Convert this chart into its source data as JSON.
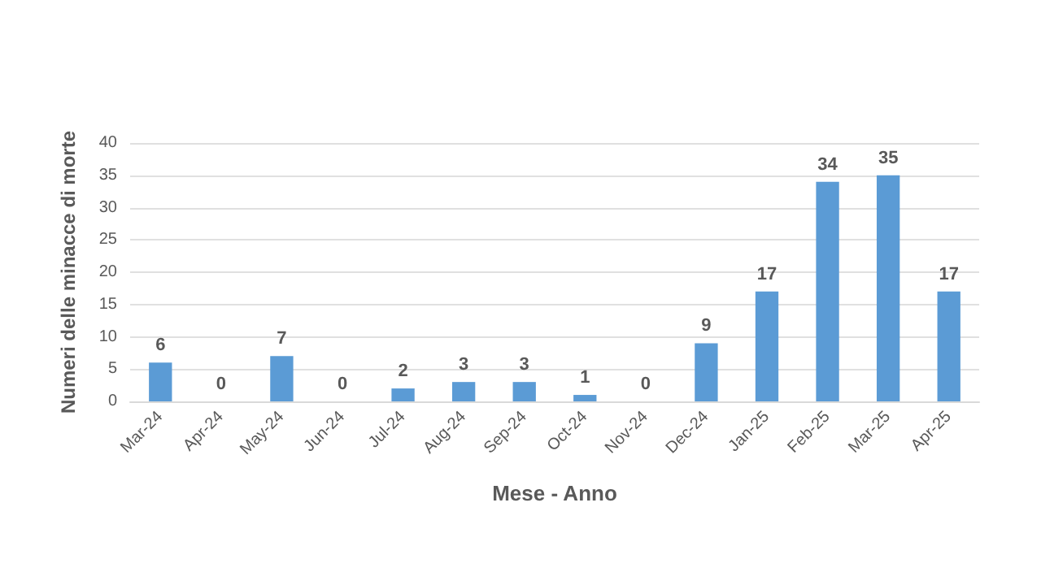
{
  "chart_data": {
    "type": "bar",
    "xlabel": "Mese - Anno",
    "ylabel": "Numeri delle minacce di morte",
    "categories": [
      "Mar-24",
      "Apr-24",
      "May-24",
      "Jun-24",
      "Jul-24",
      "Aug-24",
      "Sep-24",
      "Oct-24",
      "Nov-24",
      "Dec-24",
      "Jan-25",
      "Feb-25",
      "Mar-25",
      "Apr-25"
    ],
    "values": [
      6,
      0,
      7,
      0,
      2,
      3,
      3,
      1,
      0,
      9,
      17,
      34,
      35,
      17
    ],
    "color": "#5b9bd5",
    "ylim": [
      0,
      40
    ],
    "yticks": [
      0,
      5,
      10,
      15,
      20,
      25,
      30,
      35,
      40
    ],
    "grid": "y",
    "data_labels": true
  }
}
